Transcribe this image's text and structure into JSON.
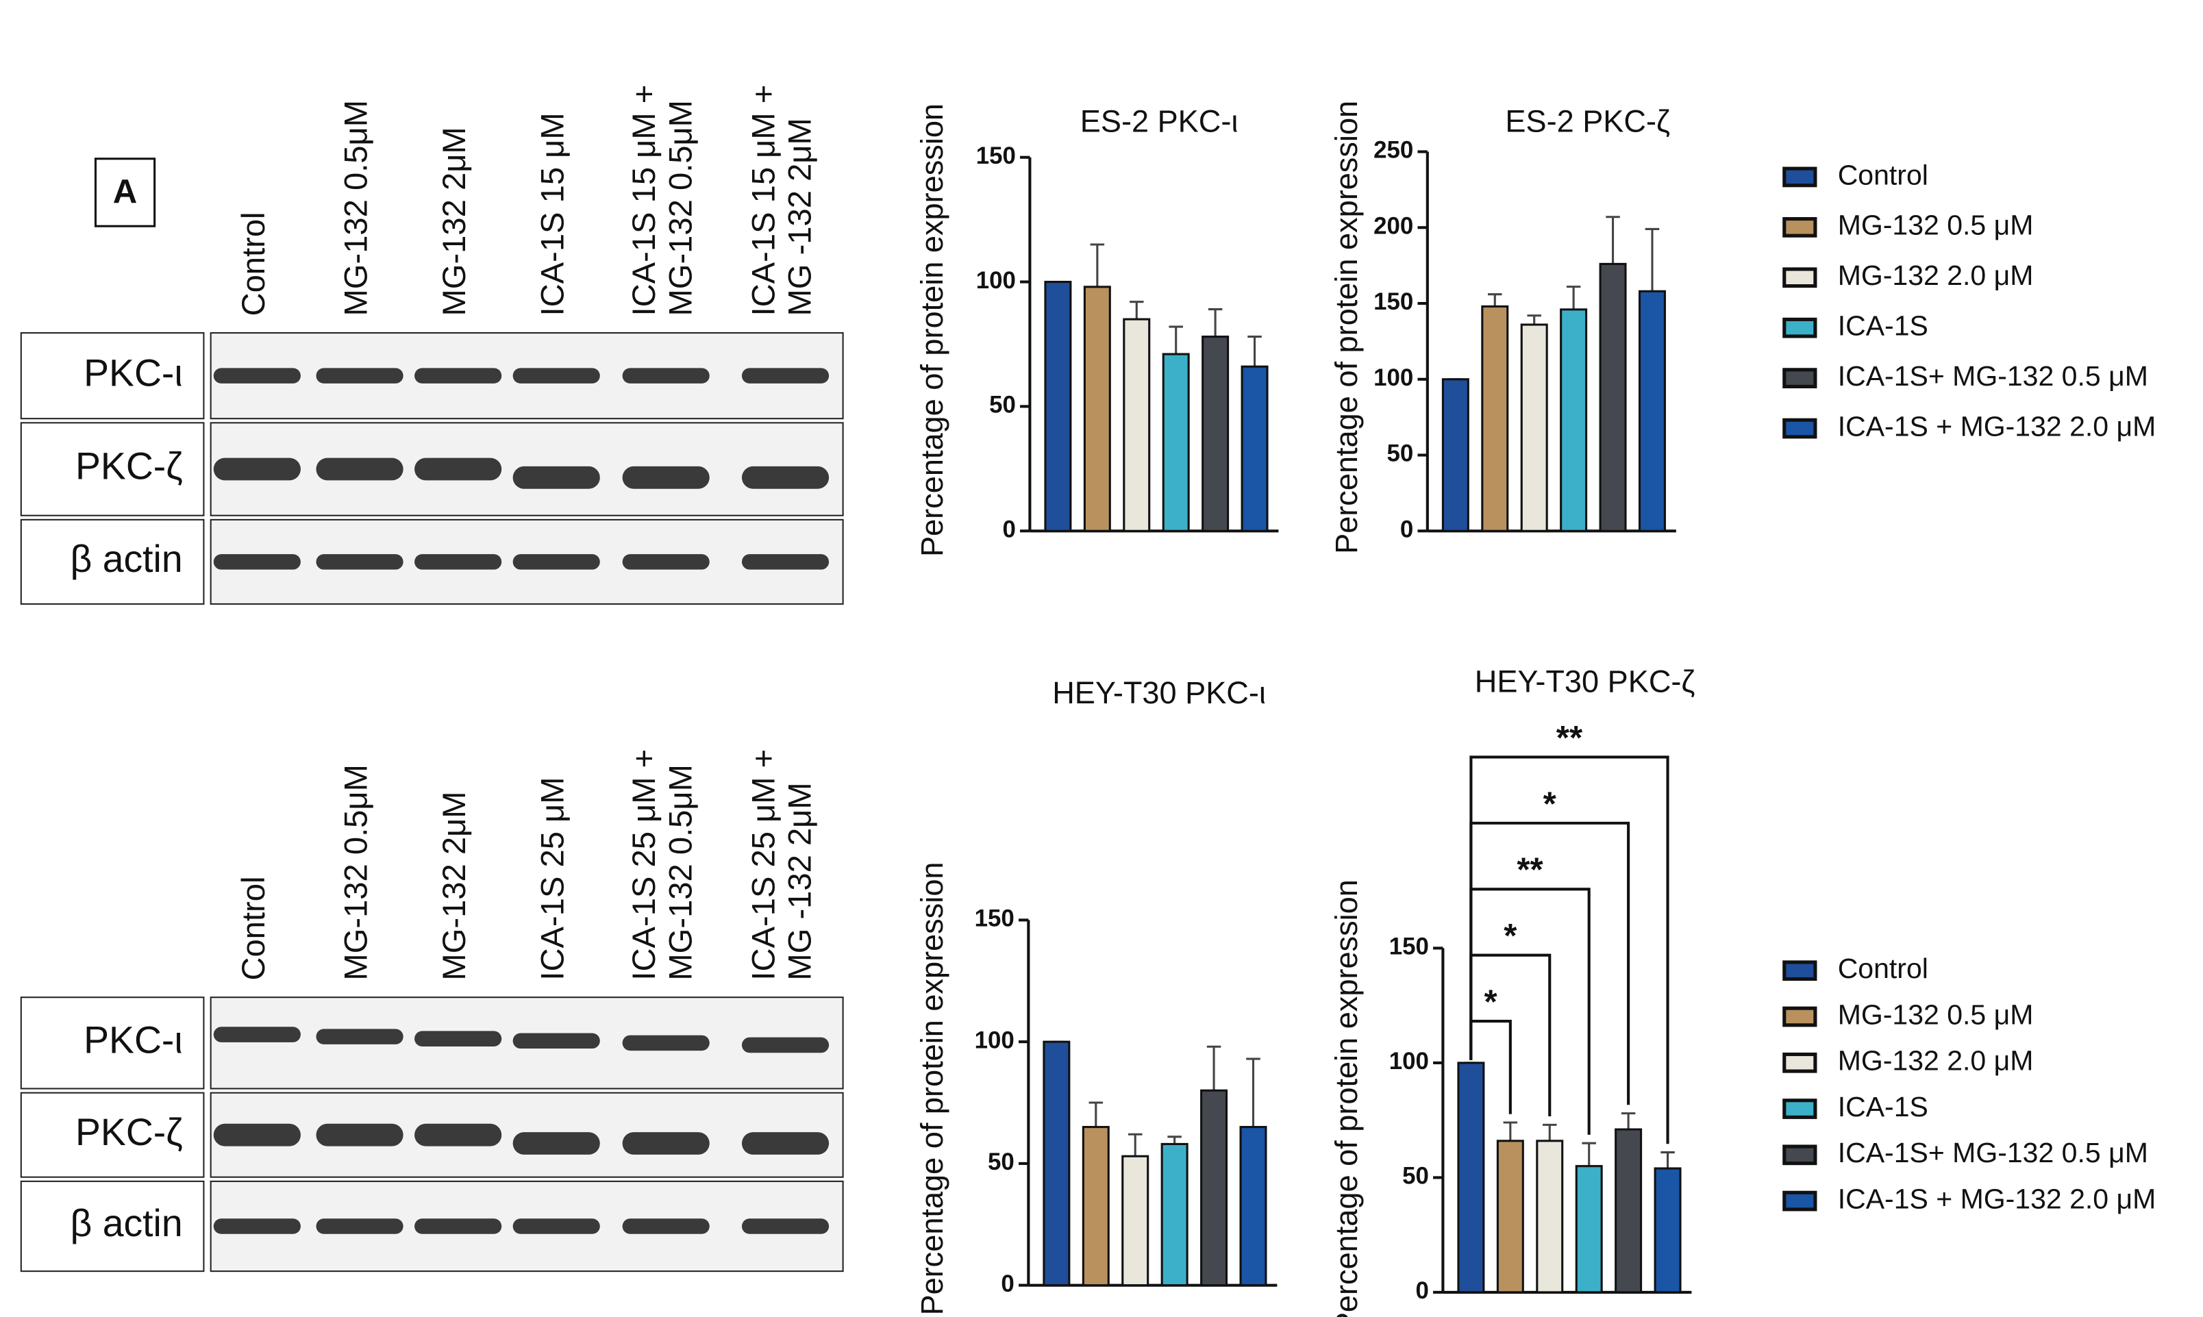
{
  "panel_label": "A",
  "blots": [
    {
      "lanes": [
        [
          "Control"
        ],
        [
          "MG-132 0.5μM"
        ],
        [
          "MG-132 2μM"
        ],
        [
          "ICA-1S 15 μM"
        ],
        [
          "ICA-1S 15 μM +",
          "MG-132 0.5μM"
        ],
        [
          "ICA-1S  15 μM +",
          "MG -132 2μM"
        ]
      ],
      "rows": [
        "PKC-ι",
        "PKC-ζ",
        "β actin"
      ]
    },
    {
      "lanes": [
        [
          "Control"
        ],
        [
          "MG-132 0.5μM"
        ],
        [
          "MG-132 2μM"
        ],
        [
          "ICA-1S 25 μM"
        ],
        [
          "ICA-1S 25 μM +",
          "MG-132 0.5μM"
        ],
        [
          "ICA-1S  25 μM +",
          "MG -132 2μM"
        ]
      ],
      "rows": [
        "PKC-ι",
        "PKC-ζ",
        "β actin"
      ]
    }
  ],
  "legend": [
    {
      "name": "Control",
      "color": "#1f4e9a"
    },
    {
      "name": "MG-132 0.5 μM",
      "color": "#b8915e"
    },
    {
      "name": "MG-132 2.0 μM",
      "color": "#e9e7dc"
    },
    {
      "name": "ICA-1S",
      "color": "#3cb0c9"
    },
    {
      "name": "ICA-1S+ MG-132 0.5 μM",
      "color": "#45494f"
    },
    {
      "name": "ICA-1S + MG-132 2.0 μM",
      "color": "#1a55a6"
    }
  ],
  "chart_data": [
    {
      "type": "bar",
      "title": "ES-2 PKC-ι",
      "y_label": "Percentage of protein expression",
      "values": [
        100,
        98,
        85,
        71,
        78,
        66
      ],
      "errors": [
        0,
        17,
        7,
        11,
        11,
        12
      ],
      "ylim": [
        0,
        150
      ],
      "yticks": [
        0,
        50,
        100,
        150
      ]
    },
    {
      "type": "bar",
      "title": "ES-2 PKC-ζ",
      "y_label": "Percentage of protein expression",
      "values": [
        100,
        148,
        136,
        146,
        176,
        158
      ],
      "errors": [
        0,
        8,
        6,
        15,
        31,
        41
      ],
      "ylim": [
        0,
        250
      ],
      "yticks": [
        0,
        50,
        100,
        150,
        200,
        250
      ]
    },
    {
      "type": "bar",
      "title": "HEY-T30 PKC-ι",
      "y_label": "Percentage of protein expression",
      "values": [
        100,
        65,
        53,
        58,
        80,
        65
      ],
      "errors": [
        0,
        10,
        9,
        3,
        18,
        28
      ],
      "ylim": [
        0,
        150
      ],
      "yticks": [
        0,
        50,
        100,
        150
      ]
    },
    {
      "type": "bar",
      "title": "HEY-T30 PKC-ζ",
      "y_label": "Percentage of protein expression",
      "values": [
        100,
        66,
        66,
        55,
        71,
        54
      ],
      "errors": [
        0,
        8,
        7,
        10,
        7,
        7
      ],
      "ylim": [
        0,
        150
      ],
      "yticks": [
        0,
        50,
        100,
        150
      ],
      "significance": [
        {
          "to": 1,
          "label": "*"
        },
        {
          "to": 2,
          "label": "*"
        },
        {
          "to": 3,
          "label": "**"
        },
        {
          "to": 4,
          "label": "*"
        },
        {
          "to": 5,
          "label": "**"
        }
      ]
    }
  ]
}
